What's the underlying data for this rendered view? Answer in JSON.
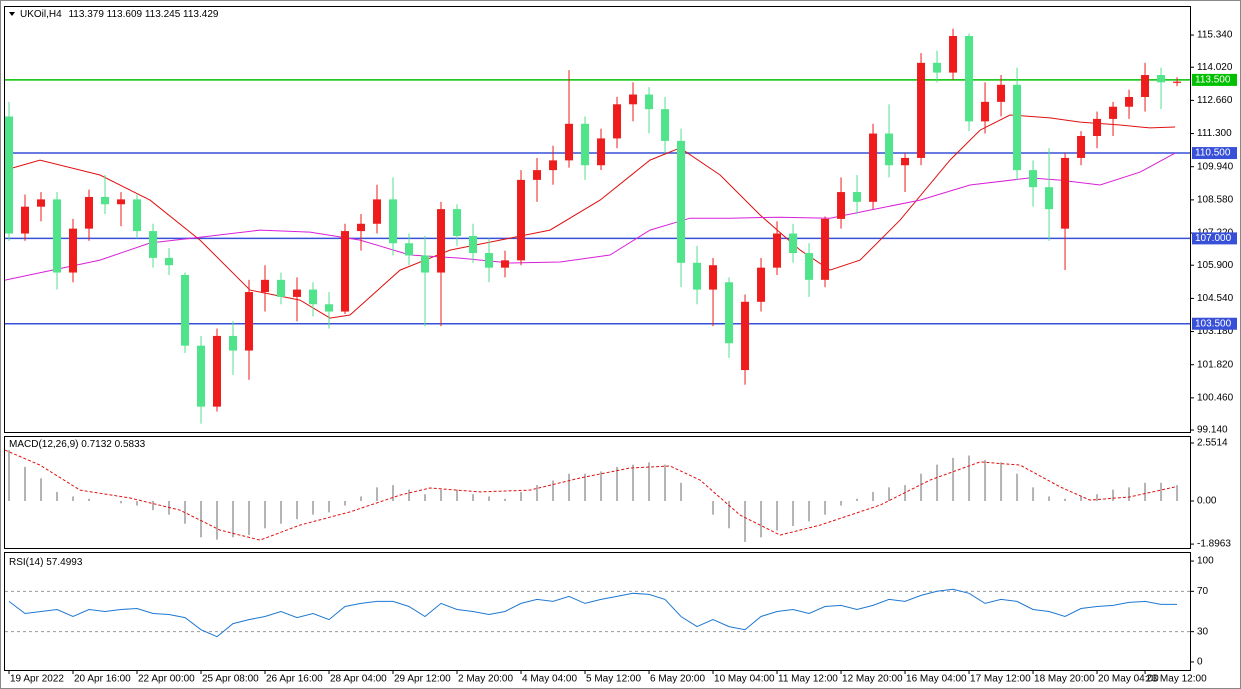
{
  "chart_data": {
    "type": "candlestick",
    "symbol": "UKOil,H4",
    "bull_color": "#ee1c1c",
    "bear_color": "#4fe38a",
    "xlim": [
      -0.25,
      73.81
    ],
    "xticks": [
      {
        "value": 0,
        "label": "19 Apr 2022"
      },
      {
        "value": 4,
        "label": "20 Apr 16:00"
      },
      {
        "value": 8,
        "label": "22 Apr 00:00"
      },
      {
        "value": 12,
        "label": "25 Apr 08:00"
      },
      {
        "value": 16,
        "label": "26 Apr 16:00"
      },
      {
        "value": 20,
        "label": "28 Apr 04:00"
      },
      {
        "value": 24,
        "label": "29 Apr 12:00"
      },
      {
        "value": 28,
        "label": "2 May 20:00"
      },
      {
        "value": 32,
        "label": "4 May 04:00"
      },
      {
        "value": 36,
        "label": "5 May 12:00"
      },
      {
        "value": 40,
        "label": "6 May 20:00"
      },
      {
        "value": 44,
        "label": "10 May 04:00"
      },
      {
        "value": 48,
        "label": "11 May 12:00"
      },
      {
        "value": 52,
        "label": "12 May 20:00"
      },
      {
        "value": 56,
        "label": "16 May 04:00"
      },
      {
        "value": 60,
        "label": "17 May 12:00"
      },
      {
        "value": 64,
        "label": "18 May 20:00"
      },
      {
        "value": 68,
        "label": "20 May 04:00"
      },
      {
        "value": 71,
        "label": "23 May 12:00"
      }
    ],
    "ylim": [
      99.06,
      116.49
    ],
    "yticks": [
      {
        "value": 115.34,
        "label": "115.340"
      },
      {
        "value": 114.02,
        "label": "114.020"
      },
      {
        "value": 112.66,
        "label": "112.660"
      },
      {
        "value": 111.3,
        "label": "111.300"
      },
      {
        "value": 109.94,
        "label": "109.940"
      },
      {
        "value": 108.58,
        "label": "108.580"
      },
      {
        "value": 107.22,
        "label": "107.220"
      },
      {
        "value": 105.9,
        "label": "105.900"
      },
      {
        "value": 104.54,
        "label": "104.540"
      },
      {
        "value": 103.18,
        "label": "103.180"
      },
      {
        "value": 101.82,
        "label": "101.820"
      },
      {
        "value": 100.46,
        "label": "100.460"
      },
      {
        "value": 99.14,
        "label": "99.140"
      }
    ],
    "hlines": [
      {
        "value": 113.5,
        "label": "113.500",
        "color": "#00c000"
      },
      {
        "value": 110.5,
        "label": "110.500",
        "color": "#3850d8"
      },
      {
        "value": 107,
        "label": "107.000",
        "color": "#3850d8"
      },
      {
        "value": 103.5,
        "label": "103.500",
        "color": "#3850d8"
      }
    ],
    "ohlc": [
      {
        "open": 112.0,
        "high": 112.6,
        "low": 106.9,
        "close": 107.2
      },
      {
        "open": 107.2,
        "high": 108.8,
        "low": 106.9,
        "close": 108.3
      },
      {
        "open": 108.3,
        "high": 108.9,
        "low": 107.7,
        "close": 108.6
      },
      {
        "open": 108.6,
        "high": 108.9,
        "low": 104.9,
        "close": 105.6
      },
      {
        "open": 105.6,
        "high": 107.8,
        "low": 105.2,
        "close": 107.4
      },
      {
        "open": 107.4,
        "high": 109.0,
        "low": 106.9,
        "close": 108.7
      },
      {
        "open": 108.7,
        "high": 109.6,
        "low": 108.0,
        "close": 108.4
      },
      {
        "open": 108.4,
        "high": 108.9,
        "low": 107.5,
        "close": 108.6
      },
      {
        "open": 108.6,
        "high": 108.8,
        "low": 107.0,
        "close": 107.3
      },
      {
        "open": 107.3,
        "high": 107.6,
        "low": 105.8,
        "close": 106.2
      },
      {
        "open": 106.2,
        "high": 106.6,
        "low": 105.5,
        "close": 105.9
      },
      {
        "open": 105.5,
        "high": 105.6,
        "low": 102.3,
        "close": 102.6
      },
      {
        "open": 102.6,
        "high": 103.0,
        "low": 99.4,
        "close": 100.1
      },
      {
        "open": 100.1,
        "high": 103.3,
        "low": 99.9,
        "close": 103.0
      },
      {
        "open": 103.0,
        "high": 103.6,
        "low": 101.4,
        "close": 102.4
      },
      {
        "open": 102.4,
        "high": 105.3,
        "low": 101.2,
        "close": 104.8
      },
      {
        "open": 104.8,
        "high": 105.9,
        "low": 104.0,
        "close": 105.3
      },
      {
        "open": 105.3,
        "high": 105.6,
        "low": 104.3,
        "close": 104.6
      },
      {
        "open": 104.6,
        "high": 105.4,
        "low": 103.6,
        "close": 104.9
      },
      {
        "open": 104.9,
        "high": 105.2,
        "low": 103.8,
        "close": 104.3
      },
      {
        "open": 104.3,
        "high": 104.8,
        "low": 103.3,
        "close": 104.0
      },
      {
        "open": 104.0,
        "high": 107.6,
        "low": 103.9,
        "close": 107.3
      },
      {
        "open": 107.3,
        "high": 108.0,
        "low": 106.5,
        "close": 107.6
      },
      {
        "open": 107.6,
        "high": 109.2,
        "low": 107.2,
        "close": 108.6
      },
      {
        "open": 108.6,
        "high": 109.5,
        "low": 106.3,
        "close": 106.8
      },
      {
        "open": 106.8,
        "high": 107.2,
        "low": 105.9,
        "close": 106.3
      },
      {
        "open": 106.3,
        "high": 107.1,
        "low": 103.4,
        "close": 105.6
      },
      {
        "open": 105.6,
        "high": 108.5,
        "low": 103.4,
        "close": 108.2
      },
      {
        "open": 108.2,
        "high": 108.4,
        "low": 106.7,
        "close": 107.1
      },
      {
        "open": 107.1,
        "high": 107.6,
        "low": 106.0,
        "close": 106.4
      },
      {
        "open": 106.4,
        "high": 107.0,
        "low": 105.2,
        "close": 105.8
      },
      {
        "open": 105.8,
        "high": 106.5,
        "low": 105.4,
        "close": 106.1
      },
      {
        "open": 106.1,
        "high": 109.8,
        "low": 105.9,
        "close": 109.4
      },
      {
        "open": 109.4,
        "high": 110.3,
        "low": 108.5,
        "close": 109.8
      },
      {
        "open": 109.8,
        "high": 110.8,
        "low": 109.2,
        "close": 110.2
      },
      {
        "open": 110.2,
        "high": 113.9,
        "low": 109.9,
        "close": 111.7
      },
      {
        "open": 111.7,
        "high": 112.0,
        "low": 109.4,
        "close": 110.0
      },
      {
        "open": 110.0,
        "high": 111.5,
        "low": 109.8,
        "close": 111.1
      },
      {
        "open": 111.1,
        "high": 112.8,
        "low": 110.7,
        "close": 112.5
      },
      {
        "open": 112.5,
        "high": 113.4,
        "low": 111.8,
        "close": 112.9
      },
      {
        "open": 112.9,
        "high": 113.2,
        "low": 111.3,
        "close": 112.3
      },
      {
        "open": 112.3,
        "high": 112.8,
        "low": 110.5,
        "close": 111.0
      },
      {
        "open": 111.0,
        "high": 111.5,
        "low": 105.0,
        "close": 106.0
      },
      {
        "open": 106.0,
        "high": 106.7,
        "low": 104.3,
        "close": 104.9
      },
      {
        "open": 104.9,
        "high": 106.2,
        "low": 103.4,
        "close": 105.9
      },
      {
        "open": 105.2,
        "high": 105.4,
        "low": 102.1,
        "close": 102.7
      },
      {
        "open": 101.6,
        "high": 104.7,
        "low": 101.0,
        "close": 104.4
      },
      {
        "open": 104.4,
        "high": 106.2,
        "low": 104.0,
        "close": 105.8
      },
      {
        "open": 105.8,
        "high": 107.7,
        "low": 105.5,
        "close": 107.2
      },
      {
        "open": 107.2,
        "high": 107.6,
        "low": 106.0,
        "close": 106.4
      },
      {
        "open": 106.4,
        "high": 106.8,
        "low": 104.6,
        "close": 105.3
      },
      {
        "open": 105.3,
        "high": 107.9,
        "low": 105.0,
        "close": 107.8
      },
      {
        "open": 107.8,
        "high": 109.5,
        "low": 107.4,
        "close": 108.9
      },
      {
        "open": 108.9,
        "high": 109.6,
        "low": 108.0,
        "close": 108.5
      },
      {
        "open": 108.5,
        "high": 111.7,
        "low": 108.2,
        "close": 111.3
      },
      {
        "open": 111.3,
        "high": 112.5,
        "low": 109.5,
        "close": 110.0
      },
      {
        "open": 110.0,
        "high": 110.5,
        "low": 108.9,
        "close": 110.3
      },
      {
        "open": 110.3,
        "high": 114.6,
        "low": 110.0,
        "close": 114.2
      },
      {
        "open": 114.2,
        "high": 114.7,
        "low": 113.4,
        "close": 113.8
      },
      {
        "open": 113.8,
        "high": 115.6,
        "low": 113.5,
        "close": 115.3
      },
      {
        "open": 115.3,
        "high": 115.4,
        "low": 111.4,
        "close": 111.8
      },
      {
        "open": 111.8,
        "high": 113.4,
        "low": 111.3,
        "close": 112.6
      },
      {
        "open": 112.6,
        "high": 113.7,
        "low": 112.0,
        "close": 113.3
      },
      {
        "open": 113.3,
        "high": 114.0,
        "low": 109.4,
        "close": 109.8
      },
      {
        "open": 109.8,
        "high": 110.2,
        "low": 108.3,
        "close": 109.1
      },
      {
        "open": 109.1,
        "high": 110.7,
        "low": 106.9,
        "close": 108.2
      },
      {
        "open": 107.4,
        "high": 110.5,
        "low": 105.7,
        "close": 110.3
      },
      {
        "open": 110.3,
        "high": 111.4,
        "low": 110.0,
        "close": 111.2
      },
      {
        "open": 111.2,
        "high": 112.2,
        "low": 110.7,
        "close": 111.9
      },
      {
        "open": 111.9,
        "high": 112.6,
        "low": 111.2,
        "close": 112.4
      },
      {
        "open": 112.4,
        "high": 113.1,
        "low": 111.9,
        "close": 112.8
      },
      {
        "open": 112.8,
        "high": 114.2,
        "low": 112.2,
        "close": 113.7
      },
      {
        "open": 113.7,
        "high": 114.0,
        "low": 112.3,
        "close": 113.4
      },
      {
        "open": 113.379,
        "high": 113.609,
        "low": 113.245,
        "close": 113.429
      }
    ],
    "lines": [
      {
        "color": "#e01010",
        "x": [
          -0.25,
          1.94,
          5.69,
          8.81,
          11.94,
          15.06,
          18.19,
          20.06,
          21.31,
          24.44,
          27.56,
          30.69,
          33.81,
          36.94,
          40.06,
          41.94,
          44.44,
          46.94,
          49.44,
          51.31,
          53.19,
          55.69,
          58.81,
          60.69,
          62.56,
          65.06,
          66.94,
          69.44,
          71.31,
          72.88
        ],
        "values": [
          109.8,
          110.21,
          109.6,
          108.57,
          106.93,
          104.88,
          104.47,
          103.73,
          103.86,
          105.7,
          106.52,
          106.93,
          107.34,
          108.57,
          110.21,
          110.71,
          109.6,
          107.96,
          106.52,
          105.7,
          106.11,
          107.75,
          110.21,
          111.44,
          112.06,
          111.94,
          111.77,
          111.65,
          111.53,
          111.57
        ]
      },
      {
        "color": "#d820d8",
        "x": [
          -0.25,
          5.69,
          8.81,
          11.94,
          15.69,
          18.81,
          21.94,
          25.06,
          28.19,
          31.31,
          34.44,
          37.56,
          40.06,
          42.56,
          45.06,
          48.19,
          51.31,
          53.81,
          56.94,
          60.06,
          63.81,
          65.69,
          68.19,
          70.69,
          72.88
        ],
        "values": [
          105.29,
          106.11,
          106.81,
          107.05,
          107.34,
          107.26,
          106.93,
          106.32,
          106.19,
          105.99,
          106.03,
          106.32,
          107.34,
          107.83,
          107.83,
          107.87,
          107.83,
          108.16,
          108.57,
          109.19,
          109.48,
          109.39,
          109.19,
          109.72,
          110.5
        ]
      }
    ],
    "macd": {
      "title": "MACD(12,26,9)",
      "readings": [
        0.7132,
        0.5833
      ],
      "hist_color": "#b4b4b4",
      "signal_color": "#e01010",
      "ylim": [
        -2.068,
        2.816
      ],
      "yticks": [
        2.5514,
        {
          "value": 0,
          "label": "0.00"
        },
        -1.8963
      ],
      "histogram": [
        2.24,
        1.5,
        1.0,
        0.4,
        0.2,
        0.1,
        0.0,
        -0.1,
        -0.2,
        -0.4,
        -0.6,
        -1.0,
        -1.6,
        -1.7,
        -1.6,
        -1.5,
        -1.2,
        -1.0,
        -0.8,
        -0.6,
        -0.5,
        -0.2,
        0.2,
        0.6,
        0.7,
        0.5,
        0.3,
        0.5,
        0.5,
        0.3,
        0.2,
        0.1,
        0.4,
        0.7,
        0.9,
        1.2,
        1.2,
        1.3,
        1.5,
        1.6,
        1.7,
        1.6,
        0.8,
        0.0,
        -0.6,
        -1.2,
        -1.8,
        -1.6,
        -1.3,
        -1.1,
        -0.9,
        -0.6,
        -0.2,
        0.1,
        0.4,
        0.6,
        0.7,
        1.2,
        1.6,
        1.9,
        2.0,
        1.8,
        1.7,
        1.2,
        0.6,
        0.2,
        0.1,
        0.2,
        0.3,
        0.5,
        0.6,
        0.8,
        0.8,
        0.7
      ],
      "signal": {
        "x": [
          -0.25,
          1.94,
          4.44,
          7.56,
          10.69,
          13.19,
          15.69,
          18.19,
          21.31,
          24.44,
          26.31,
          29.44,
          32.56,
          35.69,
          38.81,
          41.31,
          43.19,
          45.69,
          48.19,
          50.69,
          54.44,
          57.56,
          60.69,
          63.19,
          65.69,
          67.56,
          70.06,
          72.88
        ],
        "values": [
          2.24,
          1.58,
          0.48,
          0.13,
          -0.4,
          -1.28,
          -1.72,
          -1.06,
          -0.48,
          0.26,
          0.57,
          0.4,
          0.48,
          1.01,
          1.45,
          1.54,
          0.92,
          -0.62,
          -1.5,
          -1.06,
          -0.18,
          0.92,
          1.72,
          1.58,
          0.62,
          0.04,
          0.18,
          0.62
        ]
      }
    },
    "rsi": {
      "title": "RSI(14)",
      "reading": 57.4993,
      "color": "#1e78d2",
      "ylim": [
        -8,
        108
      ],
      "yticks": [
        100,
        70,
        30,
        0
      ],
      "levels": [
        70,
        30
      ],
      "values": [
        60,
        48,
        50,
        52,
        45,
        52,
        50,
        52,
        53,
        48,
        47,
        44,
        32,
        25,
        38,
        42,
        45,
        50,
        44,
        48,
        42,
        55,
        58,
        60,
        60,
        55,
        45,
        58,
        52,
        50,
        47,
        50,
        58,
        62,
        60,
        65,
        58,
        62,
        65,
        68,
        67,
        62,
        45,
        35,
        42,
        35,
        32,
        45,
        50,
        52,
        48,
        55,
        56,
        52,
        56,
        62,
        60,
        66,
        70,
        72,
        68,
        58,
        62,
        60,
        52,
        50,
        45,
        53,
        55,
        56,
        59,
        60,
        57,
        57
      ]
    }
  }
}
